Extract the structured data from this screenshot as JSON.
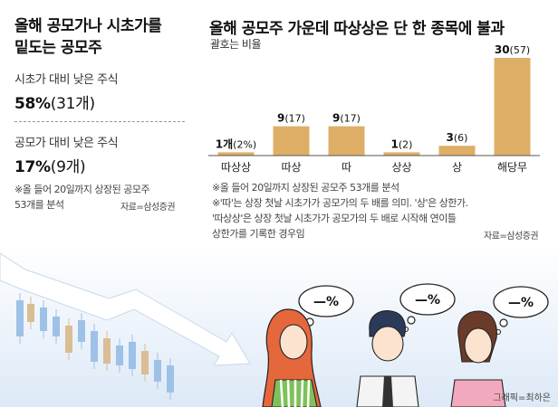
{
  "left_panel": {
    "title_line1": "올해 공모가나 시초가를",
    "title_line2": "밑도는 공모주",
    "stat1_label": "시초가 대비 낮은 주식",
    "stat1_value": "58%",
    "stat1_count": "(31개)",
    "stat2_label": "공모가 대비 낮은 주식",
    "stat2_value": "17%",
    "stat2_count": "(9개)",
    "note_line1": "※올 들어 20일까지 상장된 공모주",
    "note_line2": "53개를 분석",
    "source": "자료=삼성증권"
  },
  "chart_data": {
    "type": "bar",
    "title": "올해 공모주 가운데 따상상은 단 한 종목에 불과",
    "unit_note": "괄호는 비율",
    "categories": [
      "따상상",
      "따상",
      "따",
      "상상",
      "상",
      "해당무"
    ],
    "values": [
      1,
      9,
      9,
      1,
      3,
      30
    ],
    "percents": [
      2,
      17,
      17,
      2,
      6,
      57
    ],
    "value_labels": [
      "1개",
      "9",
      "9",
      "1",
      "3",
      "30"
    ],
    "pct_labels": [
      "(2%)",
      "(17)",
      "(17)",
      "(2)",
      "(6)",
      "(57)"
    ],
    "bar_color": "#dfae66",
    "axis_color": "#555555"
  },
  "right_notes": {
    "line1": "※올 들어 20일까지 상장된 공모주 53개를 분석",
    "line2": "※'따'는 상장 첫날 시초가가 공모가의 두 배를 의미. '상'은 상한가.",
    "line3": "'따상상'은 상장 첫날 시초가가 공모가의 두 배로 시작해 연이틀",
    "line4": "상한가를 기록한 경우임",
    "source": "자료=삼성증권"
  },
  "illustration": {
    "bubble_text": "—%",
    "credit": "그래픽=최하은",
    "sky_color": "#dde9f7",
    "candle_blue": "#9ec1e6",
    "candle_tan": "#d9bd93",
    "arrow_color": "#ffffff"
  }
}
